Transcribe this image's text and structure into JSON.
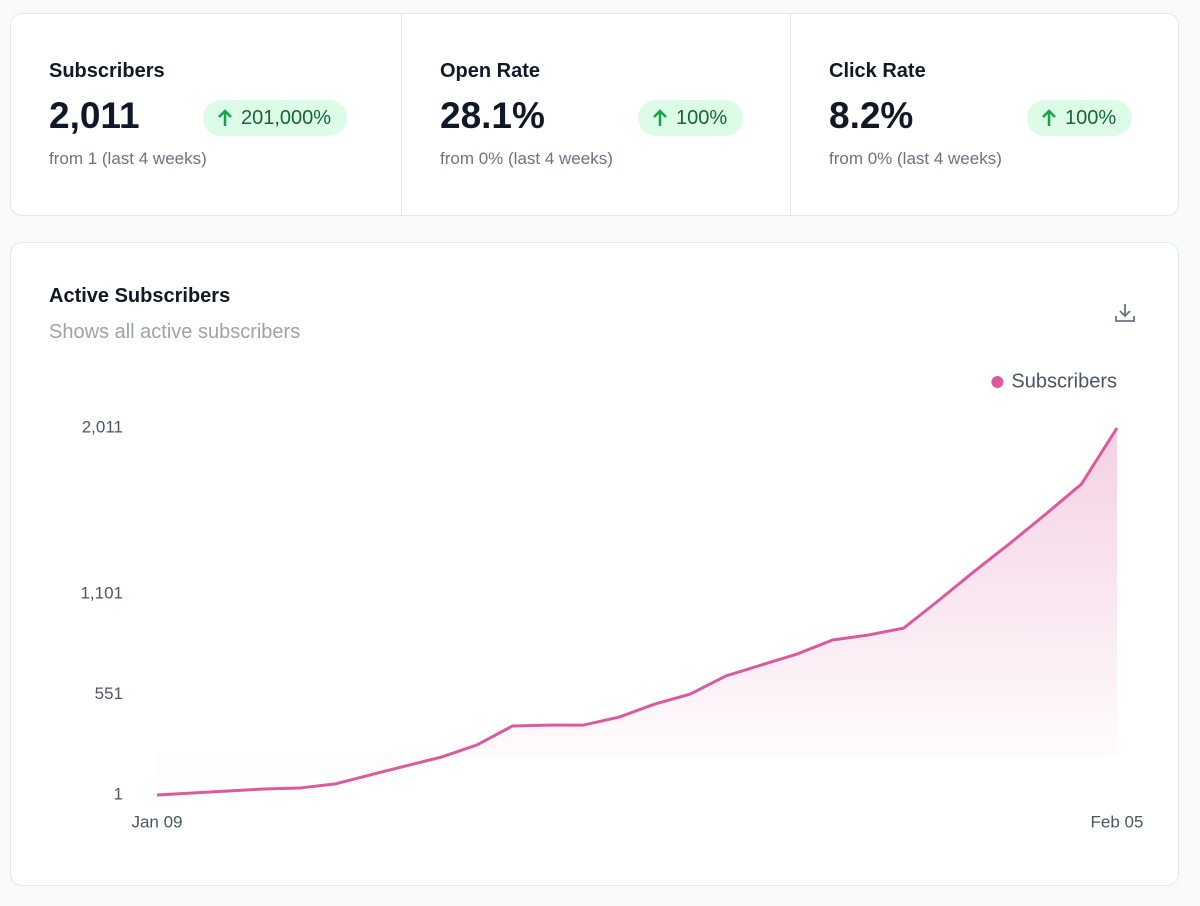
{
  "stats": [
    {
      "label": "Subscribers",
      "value": "2,011",
      "change": "201,000%",
      "note": "from 1 (last 4 weeks)"
    },
    {
      "label": "Open Rate",
      "value": "28.1%",
      "change": "100%",
      "note": "from 0% (last 4 weeks)"
    },
    {
      "label": "Click Rate",
      "value": "8.2%",
      "change": "100%",
      "note": "from 0% (last 4 weeks)"
    }
  ],
  "chart_data": {
    "type": "area",
    "title": "Active Subscribers",
    "subtitle": "Shows all active subscribers",
    "categories": [
      "Jan 09",
      null,
      null,
      null,
      null,
      null,
      null,
      null,
      null,
      null,
      null,
      null,
      null,
      null,
      null,
      null,
      null,
      null,
      null,
      null,
      null,
      null,
      null,
      null,
      null,
      null,
      null,
      "Feb 05"
    ],
    "series": [
      {
        "name": "Subscribers",
        "color": "#db5a9b",
        "values": [
          1,
          12,
          23,
          34,
          39,
          61,
          111,
          160,
          209,
          275,
          379,
          384,
          384,
          428,
          499,
          554,
          653,
          713,
          773,
          850,
          877,
          915,
          1069,
          1228,
          1381,
          1540,
          1704,
          2011
        ]
      }
    ],
    "ylim": [
      1,
      2011
    ],
    "yticks": [
      1,
      551,
      {
        "value": 1101,
        "label": "1,101"
      },
      {
        "value": 2011,
        "label": "2,011"
      }
    ],
    "legend": "top-right",
    "grid": false
  }
}
